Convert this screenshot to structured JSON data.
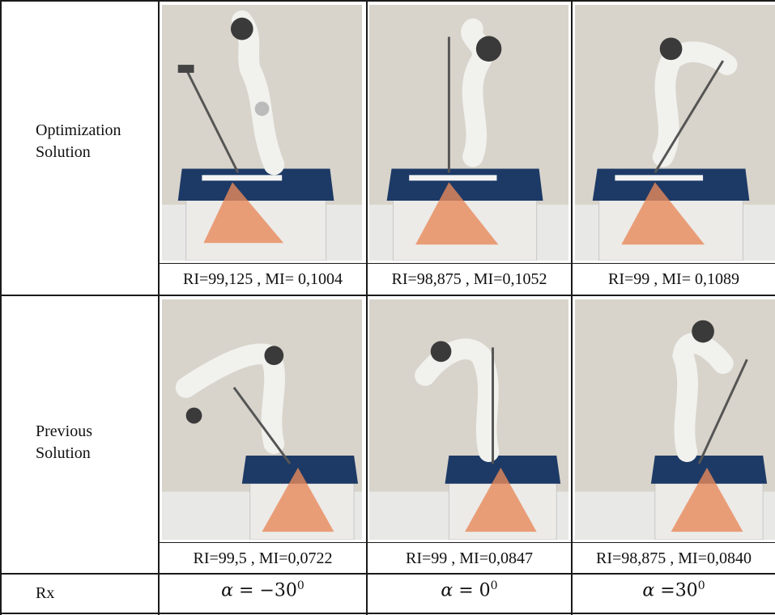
{
  "rows": [
    {
      "label_line1": "Optimization",
      "label_line2": "Solution",
      "captions": [
        "RI=99,125 , MI= 0,1004",
        "RI=98,875 , MI=0,1052",
        "RI=99 , MI= 0,1089"
      ]
    },
    {
      "label_line1": "Previous",
      "label_line2": "Solution",
      "captions": [
        "RI=99,5 , MI=0,0722",
        "RI=99 , MI=0,0847",
        "RI=98,875 , MI=0,0840"
      ]
    }
  ],
  "rx_row": {
    "label": "Rx",
    "alphas": [
      {
        "symbol": "α",
        "eq": " = ",
        "value": "−30",
        "sup": "0"
      },
      {
        "symbol": "α",
        "eq": " = ",
        "value": "0",
        "sup": "0"
      },
      {
        "symbol": "α",
        "eq": " =",
        "value": "30",
        "sup": "0"
      }
    ]
  },
  "colors": {
    "wall": "#d7d3ca",
    "robot": "#f1f1ee",
    "joint": "#3a3a3a",
    "pad": "#1d3a66",
    "cone": "#e8895a",
    "table": "#e9e9e9"
  }
}
